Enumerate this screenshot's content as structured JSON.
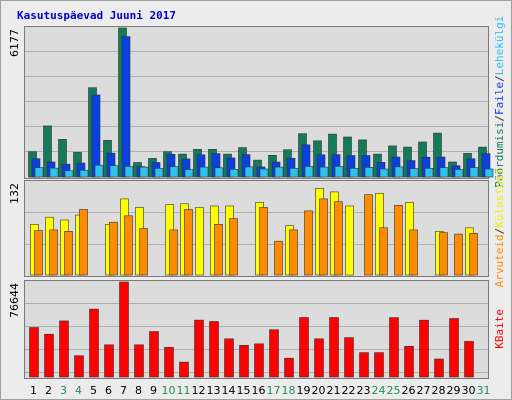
{
  "colors": {
    "background": "#ececec",
    "panel": "#dcdcdc",
    "grid": "#b0b0b0",
    "title": "#0000cc",
    "weekday": "#000000",
    "weekend": "#2a8a5a"
  },
  "chart_data": [
    {
      "type": "bar",
      "title": "Kasutuspäevad Juuni 2017",
      "y_max_label": "6177",
      "ylim": [
        0,
        6177
      ],
      "grid": true,
      "categories": [
        "1",
        "2",
        "3",
        "4",
        "5",
        "6",
        "7",
        "8",
        "9",
        "10",
        "11",
        "12",
        "13",
        "14",
        "15",
        "16",
        "17",
        "18",
        "19",
        "20",
        "21",
        "22",
        "23",
        "24",
        "25",
        "26",
        "27",
        "28",
        "29",
        "30",
        "31"
      ],
      "weekend_days": [
        "3",
        "4",
        "10",
        "11",
        "17",
        "18",
        "24",
        "25",
        "31"
      ],
      "side_labels": [
        {
          "text": "Pöördumisi",
          "color": "#157a57"
        },
        {
          "text": "/",
          "color": "#333333"
        },
        {
          "text": "Faile",
          "color": "#0b40e0"
        },
        {
          "text": "/",
          "color": "#333333"
        },
        {
          "text": "Lehekülgi",
          "color": "#2fc2ee"
        }
      ],
      "series": [
        {
          "name": "Pöördumisi",
          "color": "#157a57",
          "values": [
            1050,
            2120,
            1560,
            1020,
            3700,
            1520,
            6177,
            600,
            770,
            1050,
            950,
            1150,
            1150,
            950,
            1220,
            700,
            900,
            1130,
            1800,
            1500,
            1780,
            1660,
            1540,
            950,
            1290,
            1240,
            1450,
            1820,
            620,
            980,
            1240
          ]
        },
        {
          "name": "Faile",
          "color": "#0b40e0",
          "values": [
            760,
            620,
            530,
            580,
            3400,
            990,
            5820,
            430,
            600,
            940,
            750,
            920,
            970,
            790,
            930,
            420,
            620,
            780,
            1330,
            920,
            930,
            890,
            890,
            610,
            830,
            680,
            820,
            830,
            470,
            760,
            970
          ]
        },
        {
          "name": "Lehekülgi",
          "color": "#2fc2ee",
          "values": [
            390,
            370,
            260,
            280,
            490,
            470,
            440,
            410,
            360,
            430,
            310,
            410,
            380,
            320,
            420,
            330,
            410,
            360,
            440,
            410,
            440,
            360,
            400,
            330,
            420,
            350,
            360,
            390,
            310,
            390,
            330
          ]
        }
      ]
    },
    {
      "type": "bar",
      "y_max_label": "132",
      "ylim": [
        0,
        132
      ],
      "grid": true,
      "categories": [
        "1",
        "2",
        "3",
        "4",
        "5",
        "6",
        "7",
        "8",
        "9",
        "10",
        "11",
        "12",
        "13",
        "14",
        "15",
        "16",
        "17",
        "18",
        "19",
        "20",
        "21",
        "22",
        "23",
        "24",
        "25",
        "26",
        "27",
        "28",
        "29",
        "30",
        "31"
      ],
      "side_labels": [
        {
          "text": "Arvuteid",
          "color": "#ff8c00"
        },
        {
          "text": "/",
          "color": "#333333"
        },
        {
          "text": "Külastusi",
          "color": "#f0f000"
        }
      ],
      "series": [
        {
          "name": "Külastusi",
          "color": "#ffff00",
          "values": [
            72,
            82,
            78,
            85,
            0,
            72,
            108,
            96,
            0,
            100,
            101,
            96,
            98,
            98,
            0,
            103,
            0,
            70,
            0,
            123,
            118,
            98,
            0,
            116,
            0,
            103,
            0,
            62,
            0,
            67,
            0
          ]
        },
        {
          "name": "Arvuteid",
          "color": "#ff8c00",
          "values": [
            63,
            64,
            62,
            93,
            0,
            75,
            84,
            66,
            0,
            64,
            93,
            0,
            72,
            80,
            0,
            96,
            48,
            64,
            91,
            108,
            104,
            0,
            114,
            67,
            99,
            64,
            0,
            60,
            58,
            59,
            0
          ]
        }
      ]
    },
    {
      "type": "bar",
      "y_max_label": "76644",
      "ylim": [
        0,
        76644
      ],
      "grid": true,
      "categories": [
        "1",
        "2",
        "3",
        "4",
        "5",
        "6",
        "7",
        "8",
        "9",
        "10",
        "11",
        "12",
        "13",
        "14",
        "15",
        "16",
        "17",
        "18",
        "19",
        "20",
        "21",
        "22",
        "23",
        "24",
        "25",
        "26",
        "27",
        "28",
        "29",
        "30",
        "31"
      ],
      "side_labels": [
        {
          "text": "KBaite",
          "color": "#ff0000"
        }
      ],
      "series": [
        {
          "name": "KBaite",
          "color": "#ff0000",
          "values": [
            39900,
            34500,
            45300,
            17200,
            54800,
            26000,
            76644,
            26000,
            36700,
            23900,
            12000,
            45900,
            44800,
            30800,
            25600,
            26800,
            38200,
            15200,
            48000,
            30800,
            48000,
            31800,
            19700,
            19700,
            47900,
            24800,
            45800,
            14500,
            47200,
            28700,
            0
          ]
        }
      ]
    }
  ]
}
